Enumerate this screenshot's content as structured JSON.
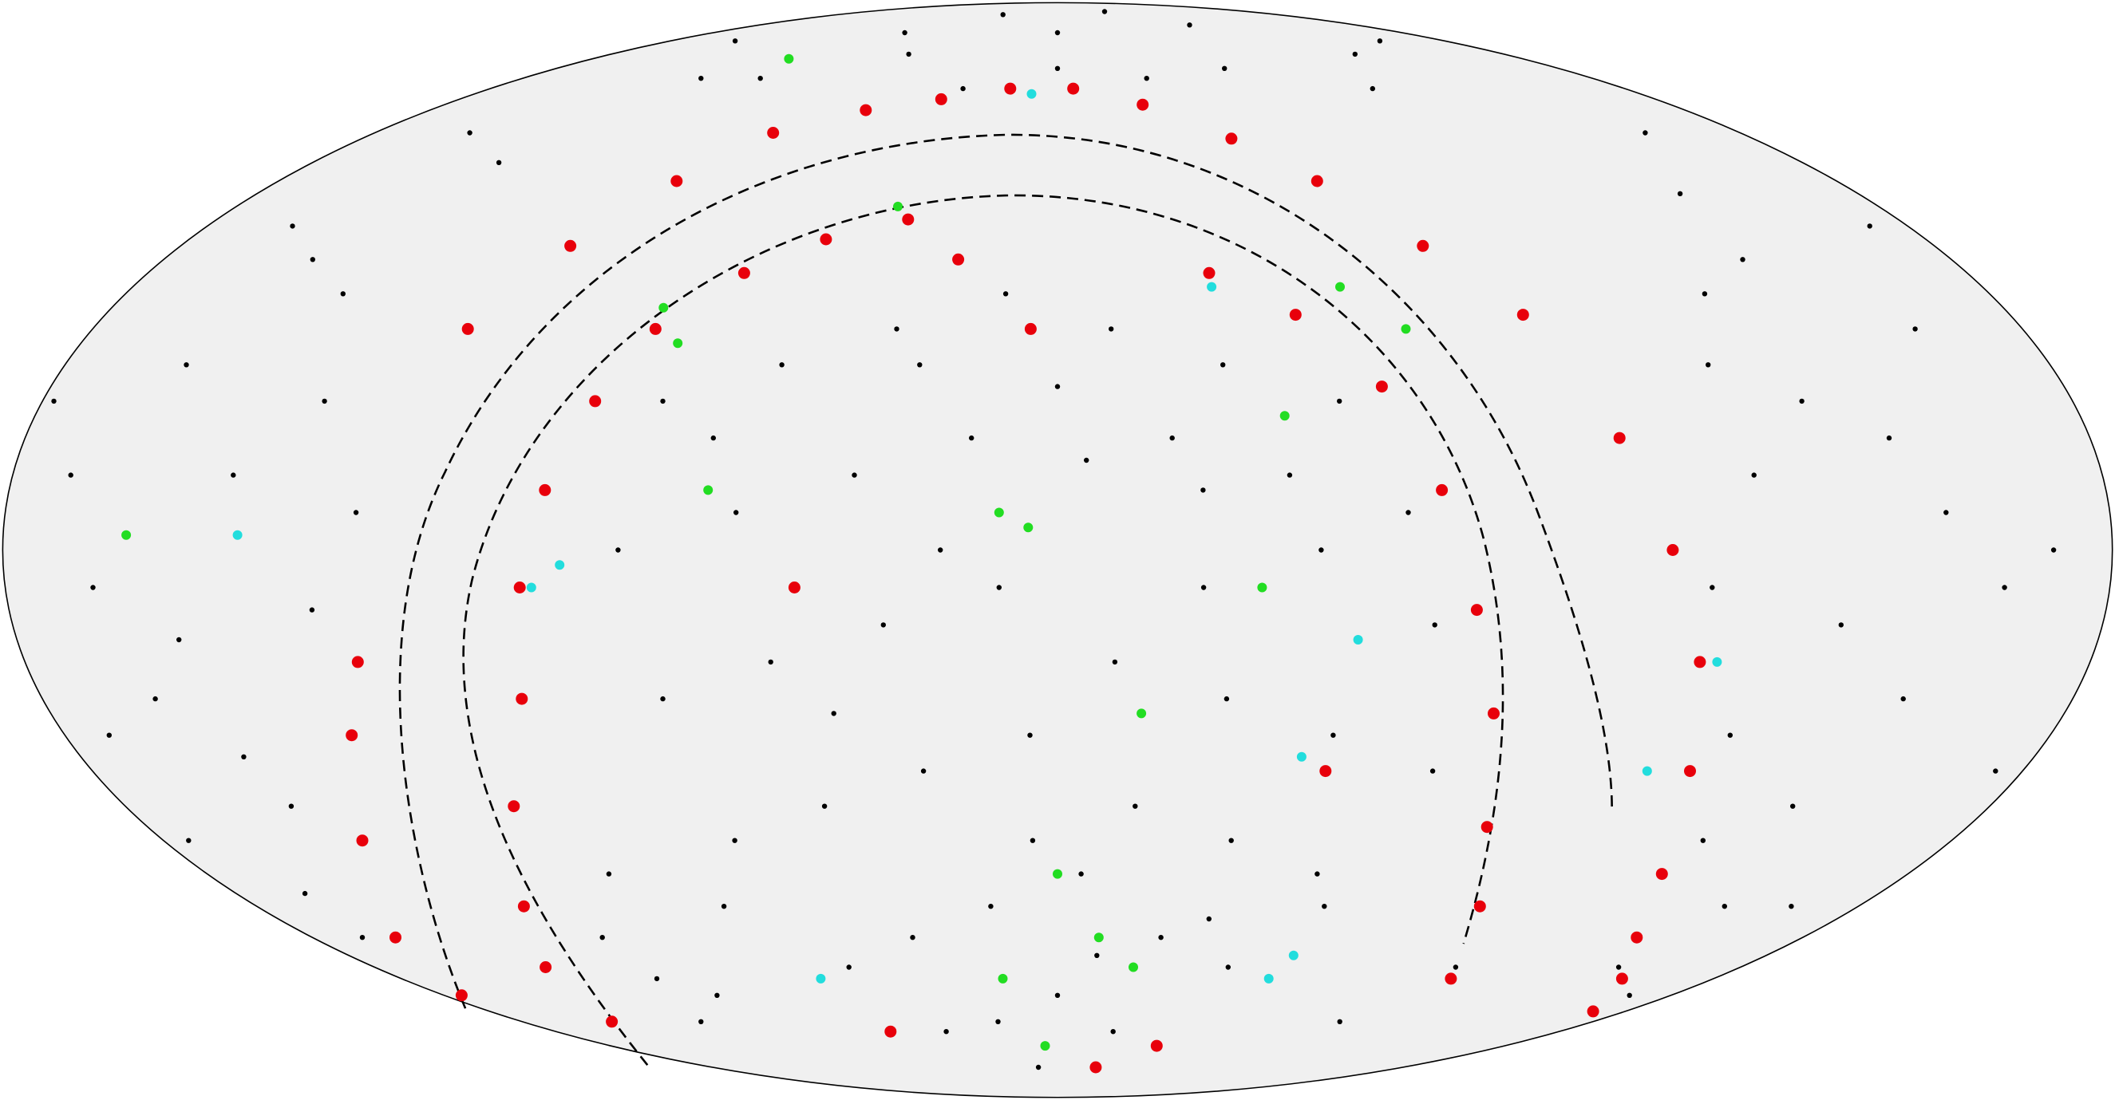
{
  "chart_data": {
    "type": "scatter",
    "projection": "mollweide",
    "xlim": [
      -180,
      180
    ],
    "ylim": [
      -90,
      90
    ],
    "series": [
      {
        "color": "#000000",
        "x": [
          -170,
          -160,
          -150,
          -165,
          -165,
          -130,
          -150,
          -155,
          -120,
          -135,
          -175,
          -120,
          -158,
          -168,
          -128,
          -148,
          -138,
          -162,
          -152,
          -142,
          -178,
          -95,
          -110,
          -172,
          170,
          160,
          150,
          140,
          130,
          120,
          165,
          155,
          145,
          135,
          125,
          122,
          175,
          162,
          148,
          138,
          150,
          118,
          172,
          152,
          142,
          132,
          168,
          112,
          -100,
          -60,
          0,
          60,
          100,
          -30,
          30,
          -120,
          120,
          -80,
          80,
          0,
          -45,
          45,
          150,
          -150,
          -70,
          -50,
          -30,
          -10,
          10,
          30,
          50,
          60,
          -75,
          -55,
          -35,
          -15,
          5,
          25,
          45,
          65,
          -70,
          -50,
          -30,
          -10,
          10,
          30,
          50,
          70,
          -65,
          -45,
          -25,
          -5,
          15,
          35,
          55,
          -55,
          -35,
          -15,
          5,
          25,
          45,
          -20,
          0,
          20,
          -40,
          -60,
          -20,
          0,
          20,
          40,
          -40,
          -5,
          25,
          -25,
          35,
          60,
          -75,
          -10,
          10,
          95,
          105,
          -100,
          -110
        ],
        "values": [
          10,
          -20,
          40,
          -48,
          -5,
          20,
          -28,
          60,
          -70,
          55,
          -40,
          5,
          25,
          -55,
          -8,
          -35,
          35,
          45,
          -12,
          10,
          20,
          -45,
          -62,
          -25,
          0,
          30,
          -20,
          50,
          -40,
          10,
          -50,
          60,
          15,
          -10,
          35,
          -25,
          -30,
          -5,
          -60,
          40,
          -50,
          25,
          45,
          5,
          -35,
          20,
          -65,
          -5,
          70,
          75,
          80,
          72,
          68,
          68,
          70,
          70,
          75,
          80,
          82,
          72,
          85,
          86,
          78,
          78,
          20,
          25,
          30,
          35,
          30,
          25,
          20,
          5,
          0,
          5,
          10,
          15,
          12,
          8,
          0,
          -10,
          -20,
          -15,
          -10,
          -5,
          -15,
          -20,
          -25,
          -30,
          -40,
          -35,
          -30,
          -25,
          -35,
          -40,
          -45,
          -60,
          -55,
          -50,
          -45,
          -55,
          -60,
          -70,
          -65,
          -72,
          -72,
          15,
          0,
          22,
          15,
          10,
          -22,
          -40,
          -5,
          25,
          -52,
          -50,
          -50,
          -80,
          -58,
          -70,
          -60,
          -65,
          -55
        ]
      },
      {
        "color": "#e8000b",
        "x": [
          -122,
          -128,
          -140,
          -160,
          -175,
          -95,
          -105,
          -120,
          -135,
          -150,
          -110,
          -100,
          -88,
          -75,
          -55,
          -35,
          -15,
          5,
          25,
          45,
          60,
          75,
          88,
          98,
          105,
          112,
          118,
          128,
          140,
          155,
          170,
          -92,
          -88,
          -82,
          -75,
          -62,
          -48,
          -32,
          30,
          45,
          58,
          66,
          72,
          78,
          85,
          95,
          108,
          -60,
          40,
          20,
          -45,
          -20,
          50,
          -5
        ],
        "values": [
          -15,
          -25,
          -40,
          -55,
          -65,
          -20,
          -35,
          -50,
          -60,
          -70,
          30,
          42,
          52,
          60,
          64,
          66,
          68,
          68,
          65,
          59,
          52,
          42,
          32,
          15,
          0,
          -15,
          -30,
          -45,
          -55,
          -62,
          -68,
          -5,
          8,
          20,
          30,
          38,
          43,
          46,
          38,
          32,
          22,
          8,
          -8,
          -22,
          -38,
          -50,
          -62,
          -72,
          -75,
          -80,
          -5,
          40,
          -30,
          30
        ]
      },
      {
        "color": "#22dd22",
        "x": [
          -104,
          -159,
          -75,
          -70,
          -35,
          -60,
          -5,
          -10,
          40,
          35,
          15,
          0,
          10,
          20,
          -15,
          65,
          55,
          -5
        ],
        "values": [
          74,
          2,
          33,
          28,
          48,
          8,
          3,
          5,
          18,
          -5,
          -22,
          -45,
          -55,
          -60,
          -62,
          30,
          36,
          -75
        ]
      },
      {
        "color": "#22dddd",
        "x": [
          -140,
          -90,
          -85,
          -8,
          30,
          52,
          45,
          115,
          110,
          58,
          -65,
          60
        ],
        "values": [
          2,
          -5,
          -2,
          67,
          36,
          -12,
          -28,
          -15,
          -30,
          -62,
          -62,
          -58
        ]
      }
    ]
  }
}
